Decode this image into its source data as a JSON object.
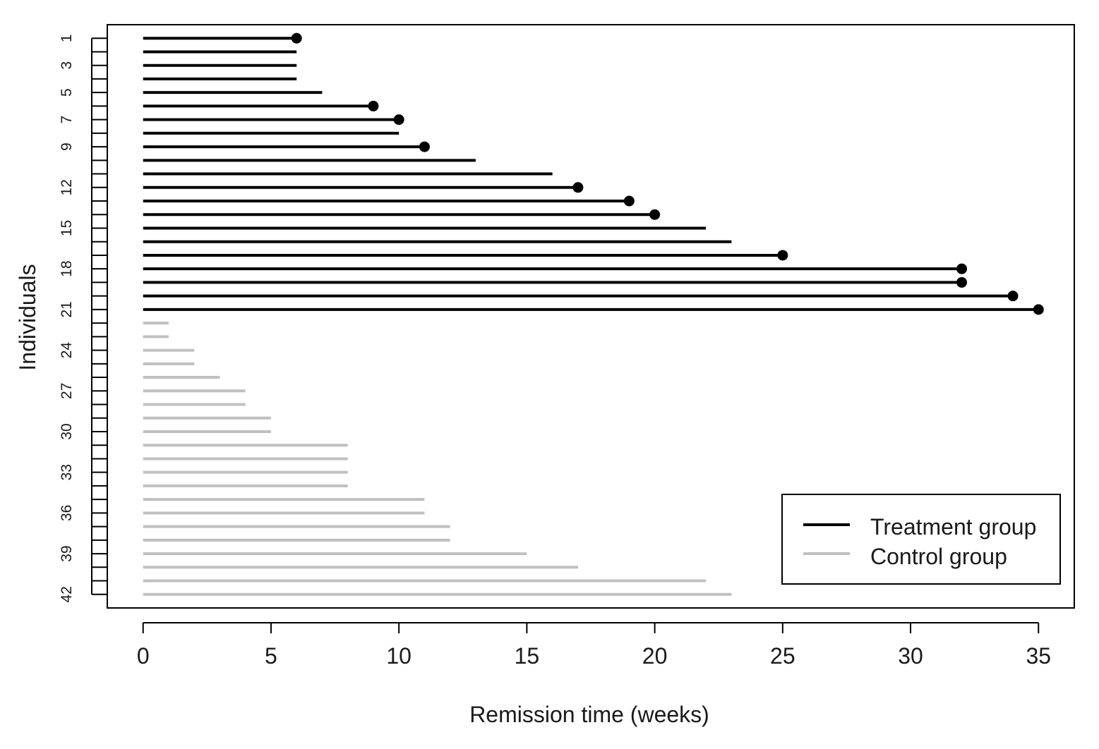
{
  "chart_data": {
    "type": "line",
    "title": "",
    "xlabel": "Remission time (weeks)",
    "ylabel": "Individuals",
    "xlim": [
      -1.4,
      36.4
    ],
    "ylim": [
      0.0,
      43.0
    ],
    "x_ticks": [
      0,
      5,
      10,
      15,
      20,
      25,
      30,
      35
    ],
    "y_tick_labels": [
      "1",
      "3",
      "5",
      "7",
      "9",
      "12",
      "15",
      "18",
      "21",
      "24",
      "27",
      "30",
      "33",
      "36",
      "39",
      "42"
    ],
    "y_tick_positions": [
      1,
      3,
      5,
      7,
      9,
      12,
      15,
      18,
      21,
      24,
      27,
      30,
      33,
      36,
      39,
      42
    ],
    "y_minor_ticks": [
      1,
      2,
      3,
      4,
      5,
      6,
      7,
      8,
      9,
      10,
      11,
      12,
      13,
      14,
      15,
      16,
      17,
      18,
      19,
      20,
      21,
      22,
      23,
      24,
      25,
      26,
      27,
      28,
      29,
      30,
      31,
      32,
      33,
      34,
      35,
      36,
      37,
      38,
      39,
      40,
      41,
      42
    ],
    "y_reversed": true,
    "grid": false,
    "legend_position": "bottom-right",
    "series": [
      {
        "name": "Treatment group",
        "color": "#000000",
        "individuals": [
          1,
          2,
          3,
          4,
          5,
          6,
          7,
          8,
          9,
          10,
          11,
          12,
          13,
          14,
          15,
          16,
          17,
          18,
          19,
          20,
          21
        ],
        "times": [
          6,
          6,
          6,
          6,
          7,
          9,
          10,
          10,
          11,
          13,
          16,
          17,
          19,
          20,
          22,
          23,
          25,
          32,
          32,
          34,
          35
        ],
        "censored": [
          true,
          false,
          false,
          false,
          false,
          true,
          true,
          false,
          true,
          false,
          false,
          true,
          true,
          true,
          false,
          false,
          true,
          true,
          true,
          true,
          true
        ]
      },
      {
        "name": "Control group",
        "color": "#c0c0c0",
        "individuals": [
          22,
          23,
          24,
          25,
          26,
          27,
          28,
          29,
          30,
          31,
          32,
          33,
          34,
          35,
          36,
          37,
          38,
          39,
          40,
          41,
          42
        ],
        "times": [
          1,
          1,
          2,
          2,
          3,
          4,
          4,
          5,
          5,
          8,
          8,
          8,
          8,
          11,
          11,
          12,
          12,
          15,
          17,
          22,
          23
        ],
        "censored": [
          false,
          false,
          false,
          false,
          false,
          false,
          false,
          false,
          false,
          false,
          false,
          false,
          false,
          false,
          false,
          false,
          false,
          false,
          false,
          false,
          false
        ]
      }
    ]
  }
}
